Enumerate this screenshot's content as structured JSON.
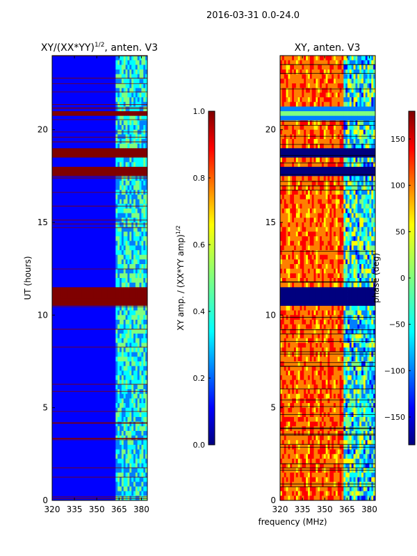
{
  "figure": {
    "suptitle": "2016-03-31 0.0-24.0"
  },
  "chart_data": [
    {
      "type": "heatmap",
      "title_main": "XY/(XX*YY)",
      "title_sup": "1/2",
      "title_tail": ", anten. V3",
      "xlabel": "",
      "ylabel": "UT (hours)",
      "xlim": [
        320,
        384
      ],
      "ylim": [
        0,
        24
      ],
      "xticks": [
        320,
        335,
        350,
        365,
        380
      ],
      "yticks": [
        0,
        5,
        10,
        15,
        20
      ],
      "colorbar": {
        "label_main": "XY amp. / (XX*YY amp)",
        "label_sup": "1/2",
        "range": [
          0.0,
          1.0
        ],
        "ticks": [
          "0.0",
          "0.2",
          "0.4",
          "0.6",
          "0.8",
          "1.0"
        ],
        "colormap": "jet"
      },
      "band_bands_hours": [
        [
          10.6,
          11.5
        ],
        [
          17.5,
          18.0
        ],
        [
          20.7,
          21.0
        ],
        [
          18.6,
          18.9
        ]
      ],
      "noisy_columns_mhz": [
        363,
        384
      ],
      "background_value": 0.2
    },
    {
      "type": "heatmap",
      "title": "XY, anten. V3",
      "xlabel": "frequency (MHz)",
      "ylabel": "",
      "xlim": [
        320,
        384
      ],
      "ylim": [
        0,
        24
      ],
      "xticks": [
        320,
        335,
        350,
        365,
        380
      ],
      "yticks": [
        0,
        5,
        10,
        15,
        20
      ],
      "colorbar": {
        "label": "phase (deg)",
        "range": [
          -180,
          180
        ],
        "ticks": [
          "150",
          "100",
          "50",
          "0",
          "−50",
          "−100",
          "−150"
        ],
        "colormap": "jet"
      },
      "blank_bands_hours": [
        [
          10.6,
          11.5
        ],
        [
          17.5,
          18.0
        ],
        [
          18.6,
          18.9
        ]
      ],
      "cyan_band_hours": [
        20.6,
        21.3
      ],
      "noisy_columns_mhz": [
        363,
        384
      ],
      "background_phase_deg": 130
    }
  ],
  "colors": {
    "jet": [
      "#00007f",
      "#0000ff",
      "#007fff",
      "#00ffff",
      "#7fff7f",
      "#ffff00",
      "#ff7f00",
      "#ff0000",
      "#7f0000"
    ]
  }
}
